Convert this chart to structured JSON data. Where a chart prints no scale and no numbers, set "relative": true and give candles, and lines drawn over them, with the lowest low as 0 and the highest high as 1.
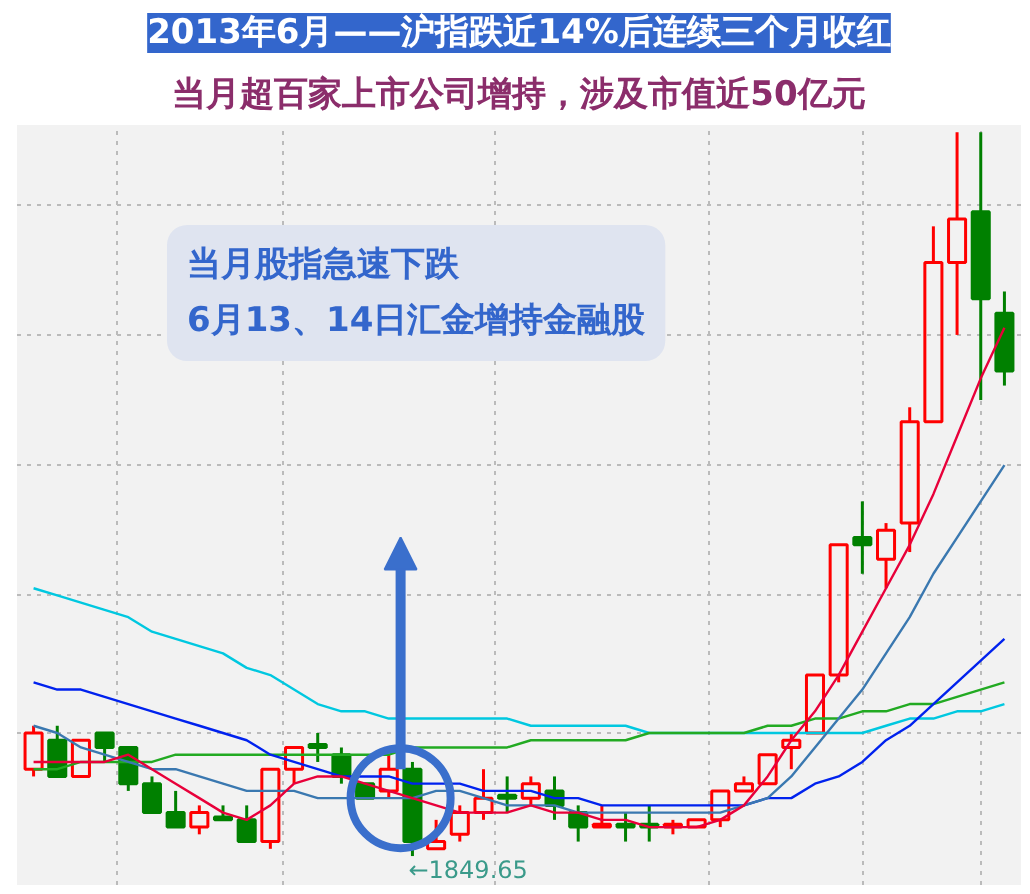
{
  "chart_data": {
    "type": "candlestick",
    "title": "2013年6月——沪指跌近14%后连续三个月收红",
    "subtitle": "当月超百家上市公司增持，涉及市值近50亿元",
    "relative": true,
    "grid": true,
    "categories": [
      null,
      null,
      null,
      null,
      null,
      null,
      null,
      null,
      null,
      null,
      null,
      null,
      null,
      null,
      null,
      null,
      null,
      null,
      null,
      null,
      null,
      null,
      null,
      null,
      null,
      null,
      null,
      null,
      null,
      null,
      null,
      null,
      null,
      null,
      null,
      null,
      null,
      null,
      null,
      null,
      null,
      null
    ],
    "ohlc": [
      [
        0.12,
        0.18,
        0.11,
        0.17
      ],
      [
        0.16,
        0.18,
        0.11,
        0.11
      ],
      [
        0.11,
        0.16,
        0.11,
        0.16
      ],
      [
        0.17,
        0.17,
        0.13,
        0.15
      ],
      [
        0.15,
        0.15,
        0.09,
        0.1
      ],
      [
        0.1,
        0.11,
        0.06,
        0.06
      ],
      [
        0.06,
        0.09,
        0.04,
        0.04
      ],
      [
        0.04,
        0.07,
        0.03,
        0.06
      ],
      [
        0.05,
        0.07,
        0.05,
        0.05
      ],
      [
        0.05,
        0.07,
        0.02,
        0.02
      ],
      [
        0.02,
        0.12,
        0.01,
        0.12
      ],
      [
        0.12,
        0.15,
        0.1,
        0.15
      ],
      [
        0.15,
        0.17,
        0.13,
        0.15
      ],
      [
        0.14,
        0.15,
        0.1,
        0.11
      ],
      [
        0.1,
        0.1,
        0.08,
        0.08
      ],
      [
        0.09,
        0.14,
        0.08,
        0.12
      ],
      [
        0.12,
        0.13,
        0.0,
        0.02
      ],
      [
        0.01,
        0.05,
        0.01,
        0.02
      ],
      [
        0.03,
        0.07,
        0.02,
        0.06
      ],
      [
        0.06,
        0.12,
        0.05,
        0.08
      ],
      [
        0.08,
        0.11,
        0.06,
        0.08
      ],
      [
        0.08,
        0.11,
        0.07,
        0.1
      ],
      [
        0.09,
        0.11,
        0.05,
        0.07
      ],
      [
        0.06,
        0.07,
        0.02,
        0.04
      ],
      [
        0.04,
        0.07,
        0.04,
        0.04
      ],
      [
        0.04,
        0.06,
        0.02,
        0.04
      ],
      [
        0.04,
        0.07,
        0.02,
        0.04
      ],
      [
        0.04,
        0.05,
        0.03,
        0.04
      ],
      [
        0.04,
        0.05,
        0.04,
        0.05
      ],
      [
        0.05,
        0.09,
        0.04,
        0.09
      ],
      [
        0.09,
        0.11,
        0.09,
        0.1
      ],
      [
        0.1,
        0.14,
        0.1,
        0.14
      ],
      [
        0.15,
        0.17,
        0.12,
        0.16
      ],
      [
        0.17,
        0.25,
        0.17,
        0.25
      ],
      [
        0.25,
        0.43,
        0.24,
        0.43
      ],
      [
        0.44,
        0.49,
        0.39,
        0.43
      ],
      [
        0.41,
        0.46,
        0.37,
        0.45
      ],
      [
        0.46,
        0.62,
        0.42,
        0.6
      ],
      [
        0.6,
        0.87,
        0.6,
        0.82
      ],
      [
        0.82,
        1.0,
        0.72,
        0.88
      ],
      [
        0.89,
        1.0,
        0.63,
        0.77
      ],
      [
        0.75,
        0.78,
        0.65,
        0.67
      ]
    ],
    "colors": [
      "#ff0000",
      "#008000",
      "#ff0000",
      "#008000",
      "#008000",
      "#008000",
      "#008000",
      "#ff0000",
      "#008000",
      "#008000",
      "#ff0000",
      "#ff0000",
      "#008000",
      "#008000",
      "#008000",
      "#ff0000",
      "#008000",
      "#ff0000",
      "#ff0000",
      "#ff0000",
      "#008000",
      "#ff0000",
      "#008000",
      "#008000",
      "#ff0000",
      "#008000",
      "#008000",
      "#ff0000",
      "#ff0000",
      "#ff0000",
      "#ff0000",
      "#ff0000",
      "#ff0000",
      "#ff0000",
      "#ff0000",
      "#008000",
      "#ff0000",
      "#ff0000",
      "#ff0000",
      "#ff0000",
      "#008000",
      "#008000"
    ],
    "series": [
      {
        "type": "line",
        "color": "#00c8e0",
        "values": [
          0.37,
          0.36,
          0.35,
          0.34,
          0.33,
          0.31,
          0.3,
          0.29,
          0.28,
          0.26,
          0.25,
          0.23,
          0.21,
          0.2,
          0.2,
          0.19,
          0.19,
          0.19,
          0.19,
          0.19,
          0.19,
          0.18,
          0.18,
          0.18,
          0.18,
          0.18,
          0.17,
          0.17,
          0.17,
          0.17,
          0.17,
          0.17,
          0.17,
          0.17,
          0.17,
          0.17,
          0.18,
          0.19,
          0.19,
          0.2,
          0.2,
          0.21
        ]
      },
      {
        "type": "line",
        "color": "#22aa22",
        "values": [
          0.12,
          0.12,
          0.13,
          0.13,
          0.13,
          0.13,
          0.14,
          0.14,
          0.14,
          0.14,
          0.14,
          0.14,
          0.14,
          0.14,
          0.14,
          0.14,
          0.15,
          0.15,
          0.15,
          0.15,
          0.15,
          0.16,
          0.16,
          0.16,
          0.16,
          0.16,
          0.17,
          0.17,
          0.17,
          0.17,
          0.17,
          0.18,
          0.18,
          0.19,
          0.19,
          0.2,
          0.2,
          0.21,
          0.21,
          0.22,
          0.23,
          0.24
        ]
      },
      {
        "type": "line",
        "color": "#0022ee",
        "values": [
          0.24,
          0.23,
          0.23,
          0.22,
          0.21,
          0.2,
          0.19,
          0.18,
          0.17,
          0.16,
          0.14,
          0.13,
          0.12,
          0.11,
          0.11,
          0.11,
          0.1,
          0.1,
          0.1,
          0.09,
          0.09,
          0.09,
          0.08,
          0.08,
          0.07,
          0.07,
          0.07,
          0.07,
          0.07,
          0.07,
          0.07,
          0.08,
          0.08,
          0.1,
          0.11,
          0.13,
          0.16,
          0.18,
          0.21,
          0.24,
          0.27,
          0.3
        ]
      },
      {
        "type": "line",
        "color": "#3a78b0",
        "values": [
          0.18,
          0.17,
          0.15,
          0.14,
          0.13,
          0.12,
          0.12,
          0.11,
          0.1,
          0.09,
          0.09,
          0.09,
          0.08,
          0.08,
          0.08,
          0.08,
          0.08,
          0.09,
          0.09,
          0.08,
          0.07,
          0.07,
          0.07,
          0.06,
          0.06,
          0.06,
          0.06,
          0.06,
          0.06,
          0.06,
          0.07,
          0.08,
          0.11,
          0.15,
          0.19,
          0.23,
          0.28,
          0.33,
          0.39,
          0.44,
          0.49,
          0.54
        ]
      },
      {
        "type": "line",
        "color": "#e8003a",
        "values": [
          0.13,
          0.13,
          0.13,
          0.13,
          0.14,
          0.12,
          0.1,
          0.08,
          0.06,
          0.05,
          0.07,
          0.1,
          0.11,
          0.11,
          0.1,
          0.09,
          0.08,
          0.07,
          0.06,
          0.06,
          0.06,
          0.07,
          0.06,
          0.06,
          0.05,
          0.05,
          0.04,
          0.04,
          0.04,
          0.05,
          0.07,
          0.11,
          0.16,
          0.2,
          0.25,
          0.31,
          0.37,
          0.43,
          0.5,
          0.58,
          0.66,
          0.73
        ]
      }
    ],
    "annotations": [
      "←1849.65",
      "当月股指急速下跌\n6月13、14日汇金增持金融股"
    ]
  }
}
